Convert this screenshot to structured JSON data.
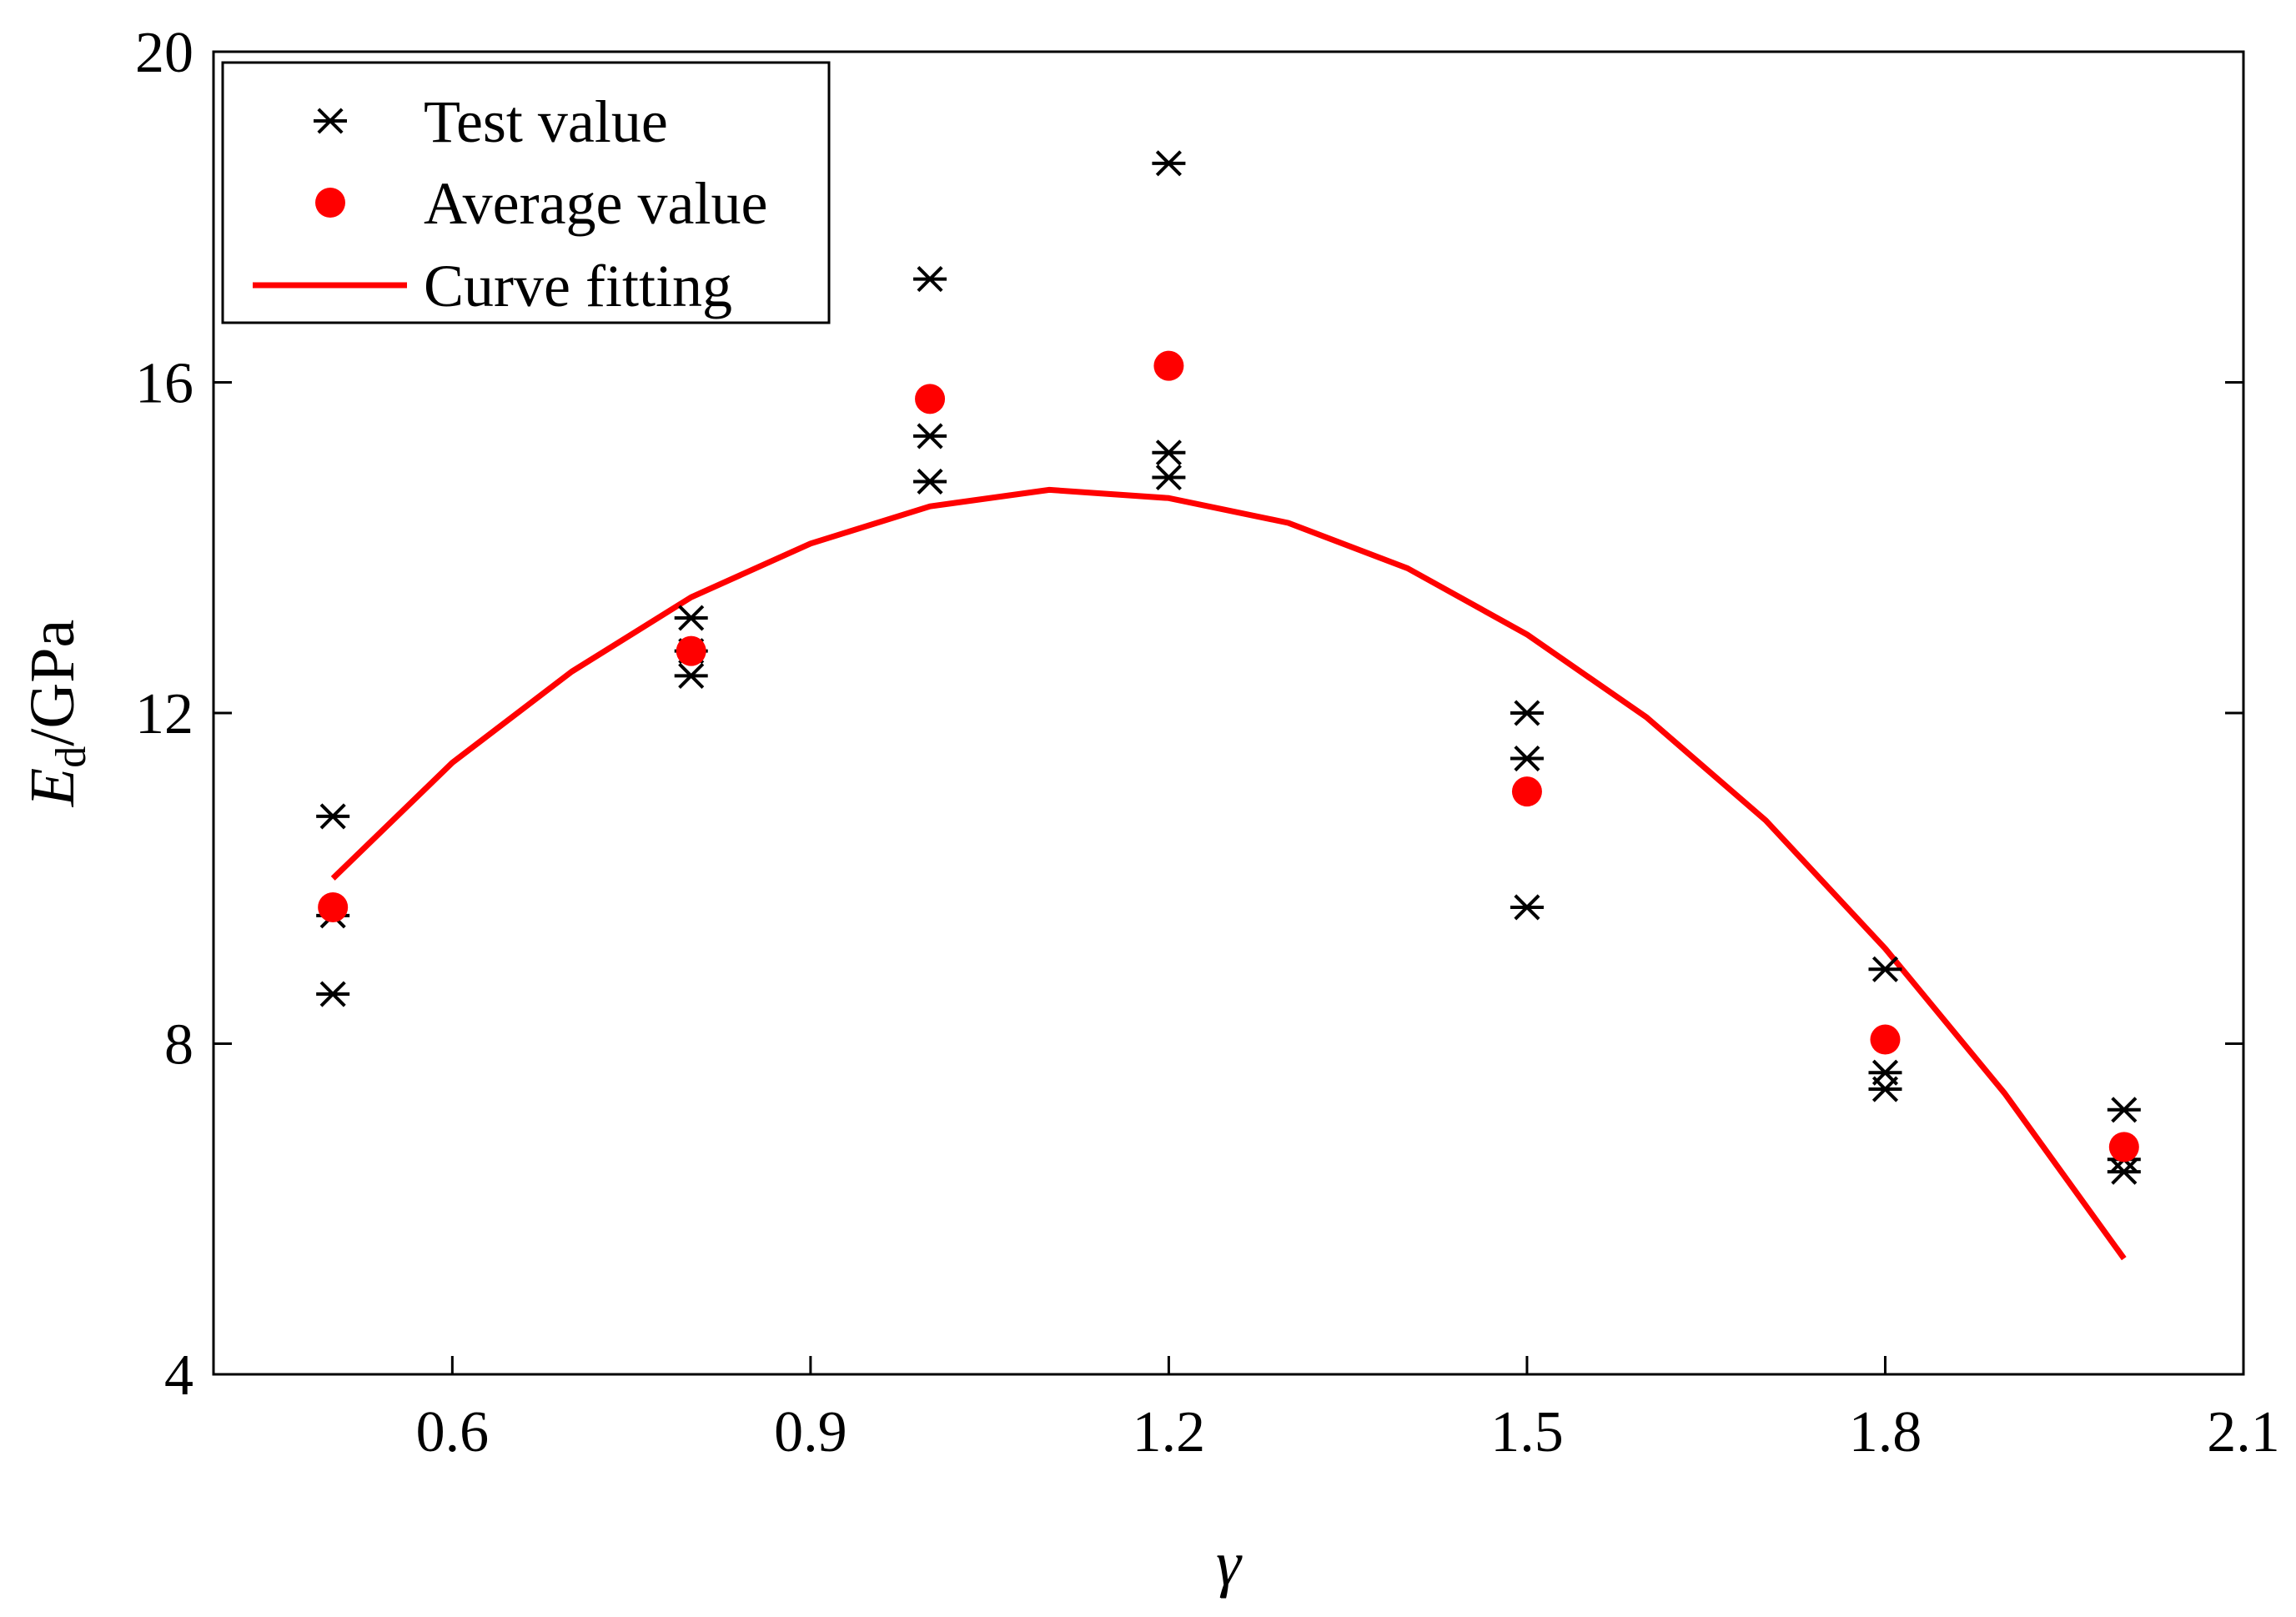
{
  "chart_data": {
    "type": "scatter",
    "title": "",
    "xlabel": "γ",
    "ylabel": {
      "main": "E",
      "subscript": "d",
      "unit": "/GPa"
    },
    "xlim": [
      0.4,
      2.1
    ],
    "ylim": [
      4,
      20
    ],
    "xticks": [
      0.6,
      0.9,
      1.2,
      1.5,
      1.8,
      2.1
    ],
    "xtick_labels": [
      "0.6",
      "0.9",
      "1.2",
      "1.5",
      "1.8",
      "2.1"
    ],
    "yticks": [
      4,
      8,
      12,
      16,
      20
    ],
    "ytick_labels": [
      "4",
      "8",
      "12",
      "16",
      "20"
    ],
    "grid": false,
    "legend_position": "top-left",
    "colors": {
      "test": "#000000",
      "average": "#ff0000",
      "fit": "#ff0000"
    },
    "series": [
      {
        "name": "Test value",
        "kind": "scatter",
        "marker": "asterisk",
        "points": [
          [
            0.5,
            10.75
          ],
          [
            0.5,
            9.55
          ],
          [
            0.5,
            8.6
          ],
          [
            0.8,
            13.15
          ],
          [
            0.8,
            12.75
          ],
          [
            0.8,
            12.45
          ],
          [
            1.0,
            17.25
          ],
          [
            1.0,
            15.35
          ],
          [
            1.0,
            14.8
          ],
          [
            1.2,
            18.65
          ],
          [
            1.2,
            15.15
          ],
          [
            1.2,
            14.85
          ],
          [
            1.5,
            12.0
          ],
          [
            1.5,
            11.45
          ],
          [
            1.5,
            9.65
          ],
          [
            1.8,
            8.9
          ],
          [
            1.8,
            7.65
          ],
          [
            1.8,
            7.45
          ],
          [
            2.0,
            7.2
          ],
          [
            2.0,
            6.6
          ],
          [
            2.0,
            6.45
          ]
        ]
      },
      {
        "name": "Average value",
        "kind": "scatter",
        "marker": "circle",
        "points": [
          [
            0.5,
            9.65
          ],
          [
            0.8,
            12.75
          ],
          [
            1.0,
            15.8
          ],
          [
            1.2,
            16.2
          ],
          [
            1.5,
            11.05
          ],
          [
            1.8,
            8.05
          ],
          [
            2.0,
            6.75
          ]
        ]
      },
      {
        "name": "Curve fitting",
        "kind": "line",
        "points": [
          [
            0.5,
            10.0
          ],
          [
            0.6,
            11.4
          ],
          [
            0.7,
            12.5
          ],
          [
            0.8,
            13.4
          ],
          [
            0.9,
            14.05
          ],
          [
            1.0,
            14.5
          ],
          [
            1.1,
            14.7
          ],
          [
            1.2,
            14.6
          ],
          [
            1.3,
            14.3
          ],
          [
            1.4,
            13.75
          ],
          [
            1.5,
            12.95
          ],
          [
            1.6,
            11.95
          ],
          [
            1.7,
            10.7
          ],
          [
            1.8,
            9.15
          ],
          [
            1.9,
            7.4
          ],
          [
            2.0,
            5.4
          ]
        ]
      }
    ]
  }
}
